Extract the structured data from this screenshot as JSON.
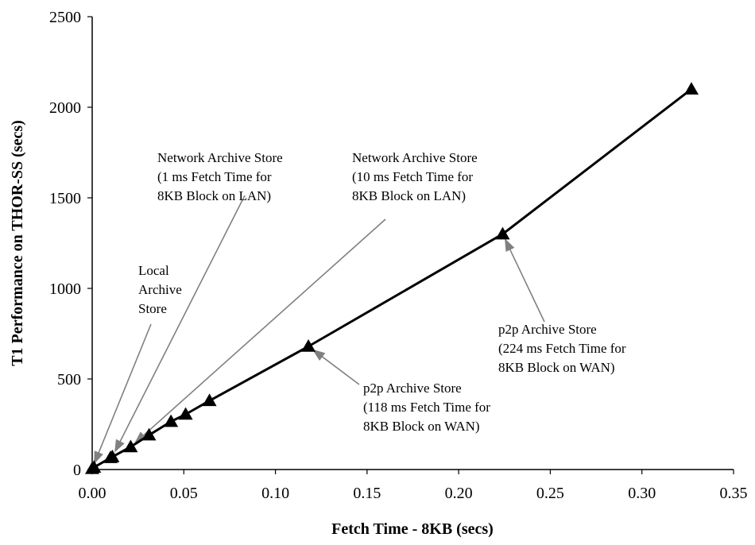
{
  "chart_data": {
    "type": "line",
    "title": "",
    "xlabel": "Fetch Time - 8KB (secs)",
    "ylabel": "T1 Performance on THOR-SS (secs)",
    "xlim": [
      0,
      0.35
    ],
    "ylim": [
      0,
      2500
    ],
    "x_ticks": [
      "0.00",
      "0.05",
      "0.10",
      "0.15",
      "0.20",
      "0.25",
      "0.30",
      "0.35"
    ],
    "y_ticks": [
      "0",
      "500",
      "1000",
      "1500",
      "2000",
      "2500"
    ],
    "grid": false,
    "legend": "none",
    "series": [
      {
        "marker": "triangle",
        "color": "#000000",
        "x": [
          0.0,
          0.001,
          0.01,
          0.011,
          0.021,
          0.031,
          0.043,
          0.051,
          0.064,
          0.118,
          0.224,
          0.327
        ],
        "y": [
          5,
          12,
          65,
          70,
          125,
          190,
          265,
          305,
          380,
          680,
          1300,
          2100
        ]
      }
    ],
    "annotations": [
      {
        "lines": [
          "Local",
          "Archive",
          "Store"
        ],
        "point": [
          0.0,
          5
        ]
      },
      {
        "lines": [
          "Network Archive Store",
          "(1 ms Fetch Time for",
          "8KB Block on LAN)"
        ],
        "point": [
          0.011,
          70
        ]
      },
      {
        "lines": [
          "Network Archive Store",
          "(10 ms Fetch Time for",
          "8KB Block on LAN)"
        ],
        "point": [
          0.021,
          125
        ]
      },
      {
        "lines": [
          "p2p Archive Store",
          "(118 ms Fetch Time for",
          "8KB Block on WAN)"
        ],
        "point": [
          0.118,
          680
        ]
      },
      {
        "lines": [
          "p2p Archive Store",
          "(224 ms Fetch Time for",
          "8KB Block on WAN)"
        ],
        "point": [
          0.224,
          1300
        ]
      }
    ],
    "arrow_color": "#808080"
  }
}
